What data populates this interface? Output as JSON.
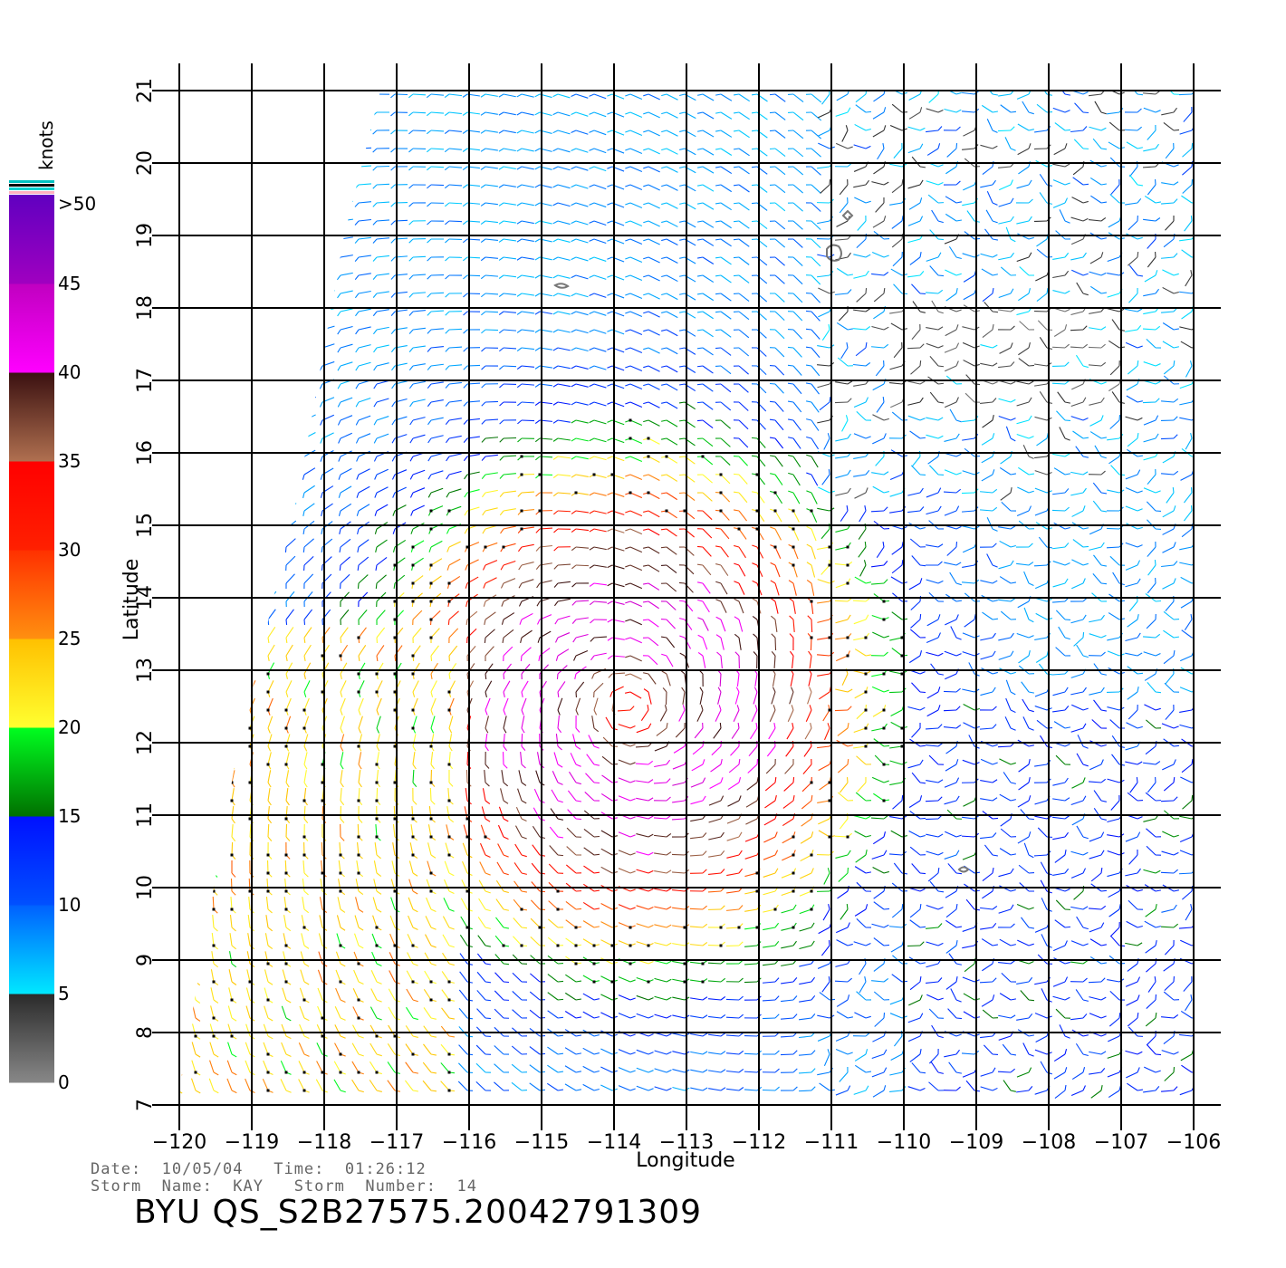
{
  "map": {
    "x_label": "Longitude",
    "y_label": "Latitude",
    "x_ticks": [
      "−120",
      "−119",
      "−118",
      "−117",
      "−116",
      "−115",
      "−114",
      "−113",
      "−112",
      "−111",
      "−110",
      "−109",
      "−108",
      "−107",
      "−106"
    ],
    "x_tick_values": [
      -120,
      -119,
      -118,
      -117,
      -116,
      -115,
      -114,
      -113,
      -112,
      -111,
      -110,
      -109,
      -108,
      -107,
      -106
    ],
    "y_ticks": [
      "7",
      "8",
      "9",
      "10",
      "11",
      "12",
      "13",
      "14",
      "15",
      "16",
      "17",
      "18",
      "19",
      "20",
      "21"
    ],
    "y_tick_values": [
      7,
      8,
      9,
      10,
      11,
      12,
      13,
      14,
      15,
      16,
      17,
      18,
      19,
      20,
      21
    ],
    "lon_range": [
      -120,
      -106
    ],
    "lat_range": [
      7,
      21
    ],
    "grid": true
  },
  "legend": {
    "title": "knots",
    "labels": [
      ">50",
      "45",
      "40",
      "35",
      "30",
      "25",
      "20",
      "15",
      "10",
      "5",
      "0"
    ],
    "label_values": [
      50,
      45,
      40,
      35,
      30,
      25,
      20,
      15,
      10,
      5,
      0
    ],
    "colors": {
      "0-5": [
        "#888888",
        "#2a2a2a"
      ],
      "5-10": [
        "#00e8ff",
        "#0060ff"
      ],
      "10-15": [
        "#0050ff",
        "#0010ff"
      ],
      "15-20": [
        "#007000",
        "#00ff20"
      ],
      "20-25": [
        "#ffff30",
        "#ffc000"
      ],
      "25-30": [
        "#ff9010",
        "#ff3000"
      ],
      "30-35": [
        "#ff2000",
        "#ff0000"
      ],
      "35-40": [
        "#b07050",
        "#3a1010"
      ],
      "40-45": [
        "#ff00ff",
        "#c000c0"
      ],
      "45-50": [
        "#a000c0",
        "#6000c0"
      ]
    }
  },
  "info": {
    "date_line": "Date:  10/05/04   Time:  01:26:12",
    "storm_line": "Storm  Name:  KAY   Storm  Number:  14"
  },
  "footer_title": "BYU  QS_S2B27575.20042791309"
}
